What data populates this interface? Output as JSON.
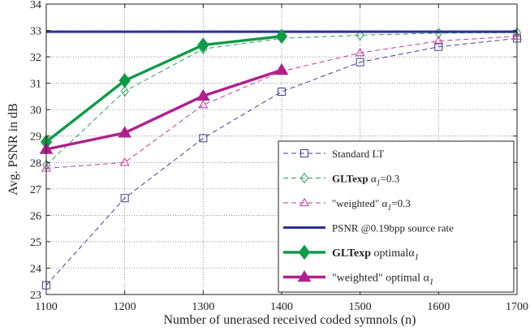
{
  "chart_data": {
    "type": "line",
    "xlabel": "Number of unerased received coded symnols (n)",
    "ylabel": "Avg. PSNR in dB",
    "xlim": [
      1100,
      1700
    ],
    "ylim": [
      23,
      34
    ],
    "x_ticks": [
      "1100",
      "1200",
      "1300",
      "1400",
      "1500",
      "1600",
      "1700"
    ],
    "y_ticks": [
      "23",
      "24",
      "25",
      "26",
      "27",
      "28",
      "29",
      "30",
      "31",
      "32",
      "33",
      "34"
    ],
    "grid": true,
    "legend_position": "bottom-right",
    "series": [
      {
        "name": "Standard LT",
        "legend": {
          "pre": "Standard LT"
        },
        "color": "#3a3f95",
        "marker": "square",
        "dash": "dashed",
        "width": "thin",
        "x": [
          1100,
          1200,
          1300,
          1400,
          1500,
          1600,
          1700
        ],
        "y": [
          23.35,
          26.65,
          28.92,
          30.68,
          31.8,
          32.38,
          32.7
        ]
      },
      {
        "name": "GLTexp α1=0.3",
        "legend": {
          "pre": "",
          "bold": "GLTexp",
          "greek": "α",
          "sub": "1",
          "post": "=0.3"
        },
        "color": "#2e9e5a",
        "marker": "diamond",
        "dash": "dashed",
        "width": "thin",
        "x": [
          1100,
          1200,
          1300,
          1400,
          1500,
          1600,
          1700
        ],
        "y": [
          27.9,
          30.7,
          32.3,
          32.7,
          32.82,
          32.9,
          32.92
        ]
      },
      {
        "name": "\"weighted\" α1=0.3",
        "legend": {
          "pre": "\"weighted\" ",
          "greek": "α",
          "sub": "1",
          "post": "=0.3"
        },
        "color": "#c03a9e",
        "marker": "triangle",
        "dash": "dashed",
        "width": "thin",
        "x": [
          1100,
          1200,
          1300,
          1400,
          1500,
          1600,
          1700
        ],
        "y": [
          27.78,
          28.0,
          30.18,
          31.45,
          32.15,
          32.6,
          32.78
        ]
      },
      {
        "name": "PSNR @0.19bpp source rate",
        "legend": {
          "pre": "PSNR @0.19bpp source rate"
        },
        "color": "#2e3192",
        "marker": "none",
        "dash": "solid",
        "width": "heavy",
        "x": [
          1100,
          1700
        ],
        "y": [
          32.95,
          32.95
        ]
      },
      {
        "name": "GLTexp optimal α1",
        "legend": {
          "pre": "",
          "bold": "GLTexp",
          "post_plain": " optimal",
          "greek": "α",
          "sub": "1",
          "post": ""
        },
        "color": "#0e9b47",
        "marker": "diamond",
        "dash": "solid",
        "width": "thick",
        "x": [
          1100,
          1200,
          1300,
          1400
        ],
        "y": [
          28.78,
          31.1,
          32.45,
          32.78
        ]
      },
      {
        "name": "\"weighted\" optimal α1",
        "legend": {
          "pre": "\"weighted\" optimal ",
          "greek": "α",
          "sub": "1",
          "post": ""
        },
        "color": "#b0208c",
        "marker": "triangle",
        "dash": "solid",
        "width": "thick",
        "x": [
          1100,
          1200,
          1300,
          1400
        ],
        "y": [
          28.5,
          29.12,
          30.52,
          31.5
        ]
      }
    ]
  }
}
